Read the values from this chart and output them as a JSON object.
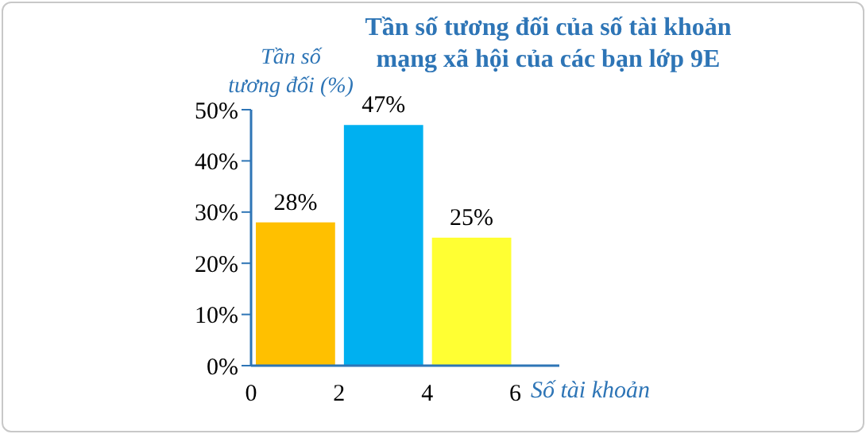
{
  "chart_data": {
    "type": "histogram",
    "title": "Tần  số tương đối của số tài khoản\nmạng  xã hội của các bạn lớp 9E",
    "xlabel": "Số tài khoản",
    "ylabel": "Tần số\ntương đối (%)",
    "bins": [
      0,
      2,
      4,
      6
    ],
    "values": [
      28,
      47,
      25
    ],
    "colors": [
      "#ffc000",
      "#00b0f0",
      "#ffff33"
    ],
    "value_labels": [
      "28%",
      "47%",
      "25%"
    ],
    "xlim": [
      0,
      7
    ],
    "xticks": [
      0,
      2,
      4,
      6
    ],
    "ylim": [
      0,
      50
    ],
    "yticks": [
      {
        "value": 0,
        "label": "0%"
      },
      {
        "value": 10,
        "label": "10%"
      },
      {
        "value": 20,
        "label": "20%"
      },
      {
        "value": 30,
        "label": "30%"
      },
      {
        "value": 40,
        "label": "40%"
      },
      {
        "value": 50,
        "label": "50%"
      }
    ],
    "grid": false,
    "legend": false
  }
}
